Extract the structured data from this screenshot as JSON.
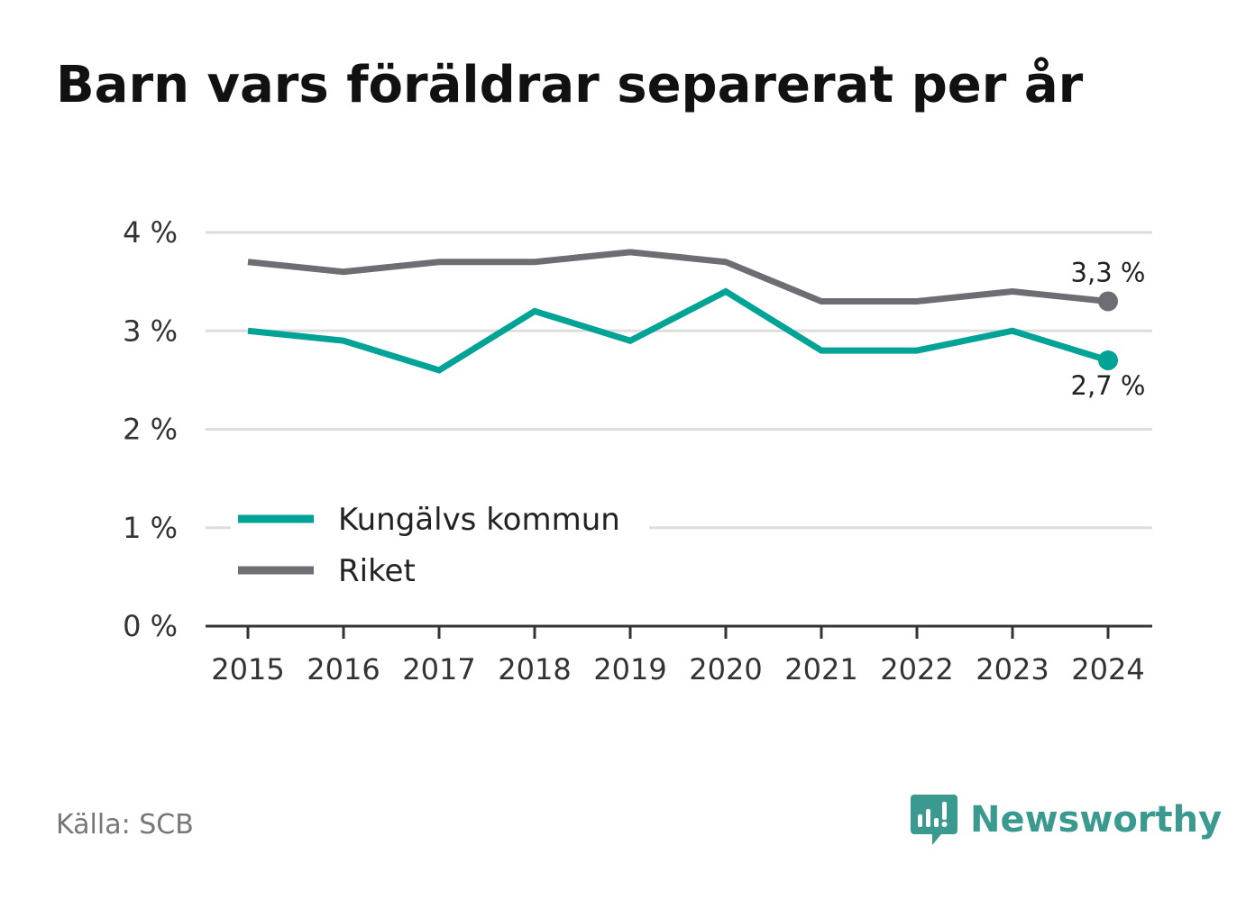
{
  "title": "Barn vars föräldrar separerat per år",
  "source": "Källa: SCB",
  "brand": {
    "name": "Newsworthy",
    "icon": "newsworthy-logo-icon",
    "color": "#3a9a8f"
  },
  "chart_data": {
    "type": "line",
    "title": "Barn vars föräldrar separerat per år",
    "x": [
      "2015",
      "2016",
      "2017",
      "2018",
      "2019",
      "2020",
      "2021",
      "2022",
      "2023",
      "2024"
    ],
    "ylim": [
      0,
      4
    ],
    "yticks": [
      {
        "value": 0,
        "label": "0 %"
      },
      {
        "value": 1,
        "label": "1 %"
      },
      {
        "value": 2,
        "label": "2 %"
      },
      {
        "value": 3,
        "label": "3 %"
      },
      {
        "value": 4,
        "label": "4 %"
      }
    ],
    "grid": true,
    "legend_position": "bottom-left",
    "series": [
      {
        "name": "Kungälvs kommun",
        "color": "#00a396",
        "values": [
          3.0,
          2.9,
          2.6,
          3.2,
          2.9,
          3.4,
          2.8,
          2.8,
          3.0,
          2.7
        ],
        "end_label": "2,7 %",
        "end_label_position": "below"
      },
      {
        "name": "Riket",
        "color": "#6e6d73",
        "values": [
          3.7,
          3.6,
          3.7,
          3.7,
          3.8,
          3.7,
          3.3,
          3.3,
          3.4,
          3.3
        ],
        "end_label": "3,3 %",
        "end_label_position": "above"
      }
    ]
  }
}
